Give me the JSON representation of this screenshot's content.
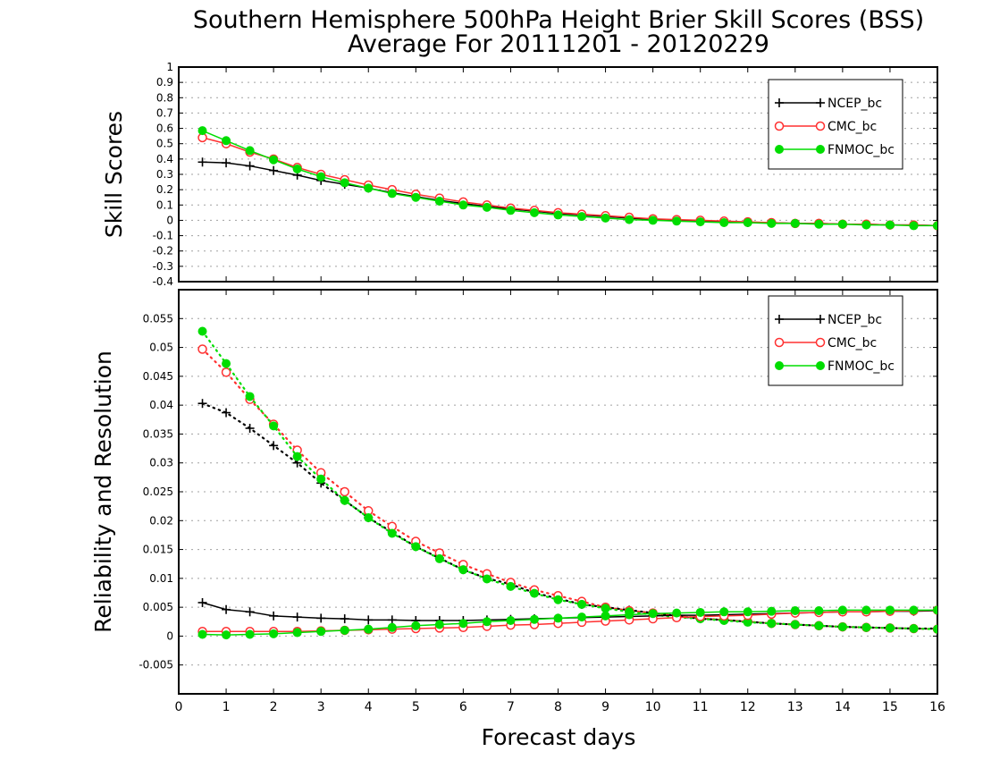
{
  "title_line1": "Southern Hemisphere 500hPa Height Brier Skill Scores (BSS)",
  "title_line2": "Average For 20111201 - 20120229",
  "xlabel": "Forecast days",
  "colors": {
    "NCEP_bc": "#000000",
    "CMC_bc": "#ff3030",
    "FNMOC_bc": "#00dd00"
  },
  "chart_data": [
    {
      "type": "line",
      "ylabel": "Skill Scores",
      "xlim": [
        0,
        16
      ],
      "ylim": [
        -0.4,
        1
      ],
      "xticks": [
        "0",
        "1",
        "2",
        "3",
        "4",
        "5",
        "6",
        "7",
        "8",
        "9",
        "10",
        "11",
        "12",
        "13",
        "14",
        "15",
        "16"
      ],
      "yticks": [
        "-0.4",
        "-0.3",
        "-0.2",
        "-0.1",
        "0",
        "0.1",
        "0.2",
        "0.3",
        "0.4",
        "0.5",
        "0.6",
        "0.7",
        "0.8",
        "0.9",
        "1"
      ],
      "grid": true,
      "legend": "top-right",
      "x": [
        0.5,
        1,
        1.5,
        2,
        2.5,
        3,
        3.5,
        4,
        4.5,
        5,
        5.5,
        6,
        6.5,
        7,
        7.5,
        8,
        8.5,
        9,
        9.5,
        10,
        10.5,
        11,
        11.5,
        12,
        12.5,
        13,
        13.5,
        14,
        14.5,
        15,
        15.5,
        16
      ],
      "series": [
        {
          "name": "NCEP_bc",
          "marker": "plus",
          "style": "solid",
          "values": [
            0.38,
            0.375,
            0.355,
            0.325,
            0.295,
            0.26,
            0.235,
            0.21,
            0.18,
            0.155,
            0.13,
            0.11,
            0.09,
            0.075,
            0.06,
            0.045,
            0.035,
            0.025,
            0.015,
            0.005,
            0.0,
            -0.005,
            -0.01,
            -0.015,
            -0.015,
            -0.02,
            -0.02,
            -0.025,
            -0.025,
            -0.03,
            -0.03,
            -0.035
          ]
        },
        {
          "name": "CMC_bc",
          "marker": "circle-open",
          "style": "solid",
          "values": [
            0.54,
            0.5,
            0.445,
            0.4,
            0.345,
            0.3,
            0.265,
            0.23,
            0.2,
            0.17,
            0.145,
            0.12,
            0.1,
            0.08,
            0.065,
            0.05,
            0.04,
            0.03,
            0.02,
            0.01,
            0.005,
            0.0,
            -0.005,
            -0.01,
            -0.015,
            -0.02,
            -0.02,
            -0.025,
            -0.025,
            -0.03,
            -0.03,
            -0.035
          ]
        },
        {
          "name": "FNMOC_bc",
          "marker": "circle-filled",
          "style": "solid",
          "values": [
            0.585,
            0.52,
            0.455,
            0.395,
            0.335,
            0.285,
            0.245,
            0.21,
            0.175,
            0.15,
            0.125,
            0.1,
            0.085,
            0.065,
            0.05,
            0.035,
            0.025,
            0.015,
            0.005,
            0.0,
            -0.005,
            -0.01,
            -0.015,
            -0.015,
            -0.02,
            -0.02,
            -0.025,
            -0.025,
            -0.03,
            -0.03,
            -0.035,
            -0.035
          ]
        }
      ]
    },
    {
      "type": "line",
      "ylabel": "Reliability and Resolution",
      "xlim": [
        0,
        16
      ],
      "ylim": [
        -0.01,
        0.06
      ],
      "xticks": [
        "0",
        "1",
        "2",
        "3",
        "4",
        "5",
        "6",
        "7",
        "8",
        "9",
        "10",
        "11",
        "12",
        "13",
        "14",
        "15",
        "16"
      ],
      "yticks": [
        "-0.005",
        "0",
        "0.005",
        "0.01",
        "0.015",
        "0.02",
        "0.025",
        "0.03",
        "0.035",
        "0.04",
        "0.045",
        "0.05",
        "0.055"
      ],
      "ytick_values": [
        -0.005,
        0,
        0.005,
        0.01,
        0.015,
        0.02,
        0.025,
        0.03,
        0.035,
        0.04,
        0.045,
        0.05,
        0.055
      ],
      "grid": true,
      "legend": "top-right",
      "x": [
        0.5,
        1,
        1.5,
        2,
        2.5,
        3,
        3.5,
        4,
        4.5,
        5,
        5.5,
        6,
        6.5,
        7,
        7.5,
        8,
        8.5,
        9,
        9.5,
        10,
        10.5,
        11,
        11.5,
        12,
        12.5,
        13,
        13.5,
        14,
        14.5,
        15,
        15.5,
        16
      ],
      "series": [
        {
          "name": "NCEP_bc",
          "metric": "resolution",
          "marker": "plus",
          "style": "dotted",
          "legend": true,
          "values": [
            0.0403,
            0.0387,
            0.036,
            0.033,
            0.03,
            0.0265,
            0.0235,
            0.0205,
            0.018,
            0.0155,
            0.0135,
            0.0115,
            0.01,
            0.009,
            0.0075,
            0.0065,
            0.0055,
            0.005,
            0.0045,
            0.004,
            0.0035,
            0.003,
            0.0028,
            0.0025,
            0.0022,
            0.002,
            0.0018,
            0.0016,
            0.0015,
            0.0014,
            0.0013,
            0.0013
          ]
        },
        {
          "name": "CMC_bc",
          "metric": "resolution",
          "marker": "circle-open",
          "style": "dotted",
          "legend": true,
          "values": [
            0.0497,
            0.0457,
            0.041,
            0.0367,
            0.0322,
            0.0283,
            0.025,
            0.0217,
            0.019,
            0.0164,
            0.0144,
            0.0124,
            0.0108,
            0.0093,
            0.008,
            0.007,
            0.006,
            0.005,
            0.0044,
            0.004,
            0.0035,
            0.0031,
            0.0028,
            0.0025,
            0.0022,
            0.002,
            0.0018,
            0.0016,
            0.0015,
            0.0014,
            0.0013,
            0.0012
          ]
        },
        {
          "name": "FNMOC_bc",
          "metric": "resolution",
          "marker": "circle-filled",
          "style": "dotted",
          "legend": true,
          "values": [
            0.0528,
            0.0472,
            0.0415,
            0.0364,
            0.0311,
            0.0272,
            0.0235,
            0.0205,
            0.0178,
            0.0155,
            0.0134,
            0.0115,
            0.0099,
            0.0086,
            0.0074,
            0.0063,
            0.0055,
            0.0048,
            0.0042,
            0.0037,
            0.0033,
            0.003,
            0.0027,
            0.0024,
            0.0022,
            0.002,
            0.0018,
            0.0016,
            0.0015,
            0.0014,
            0.0013,
            0.0012
          ]
        },
        {
          "name": "NCEP_bc",
          "metric": "reliability",
          "marker": "plus",
          "style": "solid",
          "legend": false,
          "values": [
            0.0058,
            0.0046,
            0.0042,
            0.0035,
            0.0033,
            0.0031,
            0.003,
            0.0028,
            0.0028,
            0.0027,
            0.0027,
            0.0027,
            0.0028,
            0.0029,
            0.003,
            0.0031,
            0.0032,
            0.0033,
            0.0034,
            0.0035,
            0.0036,
            0.0036,
            0.0037,
            0.0038,
            0.0039,
            0.004,
            0.0041,
            0.0042,
            0.0042,
            0.0043,
            0.0043,
            0.0044
          ]
        },
        {
          "name": "CMC_bc",
          "metric": "reliability",
          "marker": "circle-open",
          "style": "solid",
          "legend": false,
          "values": [
            0.0008,
            0.0008,
            0.0008,
            0.0008,
            0.0008,
            0.0009,
            0.001,
            0.0011,
            0.0012,
            0.0013,
            0.0014,
            0.0015,
            0.0017,
            0.0019,
            0.002,
            0.0022,
            0.0024,
            0.0026,
            0.0028,
            0.003,
            0.0032,
            0.0034,
            0.0035,
            0.0036,
            0.0038,
            0.004,
            0.0041,
            0.0042,
            0.0042,
            0.0043,
            0.0044,
            0.0045
          ]
        },
        {
          "name": "FNMOC_bc",
          "metric": "reliability",
          "marker": "circle-filled",
          "style": "solid",
          "legend": false,
          "values": [
            0.0003,
            0.0002,
            0.0003,
            0.0004,
            0.0006,
            0.0008,
            0.001,
            0.0012,
            0.0015,
            0.0018,
            0.002,
            0.0022,
            0.0025,
            0.0027,
            0.0029,
            0.0031,
            0.0033,
            0.0035,
            0.0037,
            0.0039,
            0.004,
            0.0041,
            0.0042,
            0.0042,
            0.0043,
            0.0044,
            0.0044,
            0.0045,
            0.0045,
            0.0045,
            0.0045,
            0.0045
          ]
        }
      ]
    }
  ]
}
